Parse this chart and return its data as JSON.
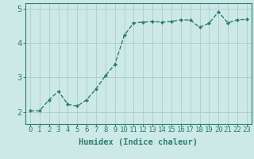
{
  "x": [
    0,
    1,
    2,
    3,
    4,
    5,
    6,
    7,
    8,
    9,
    10,
    11,
    12,
    13,
    14,
    15,
    16,
    17,
    18,
    19,
    20,
    21,
    22,
    23
  ],
  "y": [
    2.03,
    2.03,
    2.35,
    2.6,
    2.22,
    2.17,
    2.35,
    2.67,
    3.05,
    3.38,
    4.22,
    4.58,
    4.6,
    4.62,
    4.6,
    4.62,
    4.67,
    4.66,
    4.45,
    4.57,
    4.9,
    4.58,
    4.67,
    4.68
  ],
  "line_color": "#2e7d6e",
  "marker": "D",
  "marker_size": 2.2,
  "linewidth": 1.0,
  "background_color": "#cce9e8",
  "grid_color": "#b0d0ce",
  "axis_color": "#2e7d6e",
  "tick_color": "#2e7d6e",
  "xlabel": "Humidex (Indice chaleur)",
  "xlabel_fontsize": 7.5,
  "xlabel_color": "#2e7d6e",
  "yticks": [
    2,
    3,
    4,
    5
  ],
  "ylim": [
    1.65,
    5.15
  ],
  "xlim": [
    -0.5,
    23.5
  ],
  "xtick_labels": [
    "0",
    "1",
    "2",
    "3",
    "4",
    "5",
    "6",
    "7",
    "8",
    "9",
    "10",
    "11",
    "12",
    "13",
    "14",
    "15",
    "16",
    "17",
    "18",
    "19",
    "20",
    "21",
    "22",
    "23"
  ],
  "tick_fontsize": 6.5
}
